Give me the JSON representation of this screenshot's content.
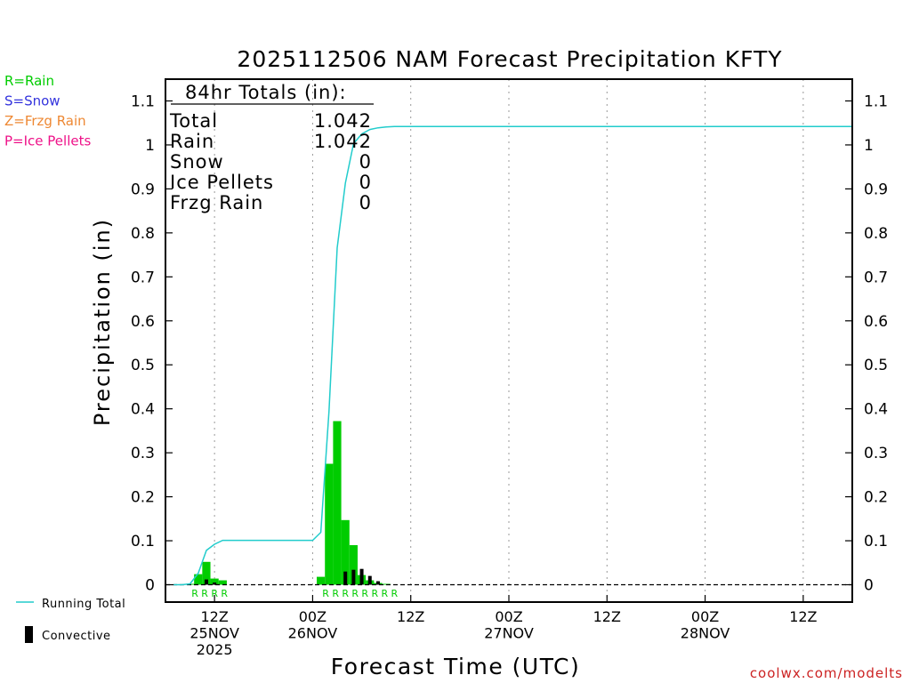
{
  "chart_data": {
    "type": "bar",
    "title": "2025112506 NAM Forecast Precipitation KFTY",
    "xlabel": "Forecast Time (UTC)",
    "ylabel": "Precipitation (in)",
    "ylim": [
      0,
      1.1
    ],
    "yticks": [
      0,
      0.1,
      0.2,
      0.3,
      0.4,
      0.5,
      0.6,
      0.7,
      0.8,
      0.9,
      1,
      1.1
    ],
    "ytick_labels": [
      "0",
      "0.1",
      "0.2",
      "0.3",
      "0.4",
      "0.5",
      "0.6",
      "0.7",
      "0.8",
      "0.9",
      "1",
      "1.1"
    ],
    "xlim_hours": [
      6,
      90
    ],
    "xticks": [
      {
        "hour": 12,
        "lines": [
          "12Z",
          "25NOV",
          "2025"
        ]
      },
      {
        "hour": 24,
        "lines": [
          "00Z",
          "26NOV"
        ]
      },
      {
        "hour": 36,
        "lines": [
          "12Z"
        ]
      },
      {
        "hour": 48,
        "lines": [
          "00Z",
          "27NOV"
        ]
      },
      {
        "hour": 60,
        "lines": [
          "12Z"
        ]
      },
      {
        "hour": 72,
        "lines": [
          "00Z",
          "28NOV"
        ]
      },
      {
        "hour": 84,
        "lines": [
          "12Z"
        ]
      }
    ],
    "bar_width_hours": 1,
    "series": [
      {
        "name": "Rain",
        "color": "#00cc00",
        "x": [
          9,
          10,
          11,
          12,
          13,
          25,
          26,
          27,
          28,
          29,
          30,
          31,
          32,
          33
        ],
        "values": [
          0.002,
          0.024,
          0.052,
          0.014,
          0.01,
          0.018,
          0.275,
          0.372,
          0.147,
          0.09,
          0.022,
          0.01,
          0.004,
          0.002
        ]
      },
      {
        "name": "Convective",
        "color": "#000000",
        "x": [
          11,
          12,
          28,
          29,
          30,
          31,
          32
        ],
        "values": [
          0.012,
          0.005,
          0.03,
          0.034,
          0.036,
          0.02,
          0.008
        ]
      },
      {
        "name": "Running Total",
        "color": "#22cccc",
        "x": [
          7,
          8,
          9,
          10,
          11,
          12,
          13,
          14,
          15,
          16,
          17,
          18,
          19,
          20,
          21,
          22,
          23,
          24,
          25,
          26,
          27,
          28,
          29,
          30,
          31,
          32,
          33,
          34,
          36,
          90
        ],
        "values": [
          0,
          0,
          0.002,
          0.026,
          0.078,
          0.092,
          0.101,
          0.101,
          0.101,
          0.101,
          0.101,
          0.101,
          0.101,
          0.101,
          0.101,
          0.101,
          0.101,
          0.101,
          0.119,
          0.394,
          0.766,
          0.913,
          1.003,
          1.025,
          1.035,
          1.039,
          1.041,
          1.042,
          1.042,
          1.042
        ]
      }
    ],
    "precip_type_markers": [
      {
        "hour": 9.6,
        "label": "R"
      },
      {
        "hour": 10.8,
        "label": "R"
      },
      {
        "hour": 12.0,
        "label": "R"
      },
      {
        "hour": 13.2,
        "label": "R"
      },
      {
        "hour": 25.6,
        "label": "R"
      },
      {
        "hour": 26.8,
        "label": "R"
      },
      {
        "hour": 28.0,
        "label": "R"
      },
      {
        "hour": 29.2,
        "label": "R"
      },
      {
        "hour": 30.4,
        "label": "R"
      },
      {
        "hour": 31.6,
        "label": "R"
      },
      {
        "hour": 32.8,
        "label": "R"
      },
      {
        "hour": 34.0,
        "label": "R"
      }
    ],
    "totals_box": {
      "heading": "84hr Totals (in):",
      "rows": [
        {
          "label": "Total",
          "value": "1.042"
        },
        {
          "label": "Rain",
          "value": "1.042"
        },
        {
          "label": "Snow",
          "value": "0"
        },
        {
          "label": "Ice Pellets",
          "value": "0"
        },
        {
          "label": "Frzg Rain",
          "value": "0"
        }
      ]
    },
    "type_legend": [
      {
        "label": "R=Rain",
        "color": "#00cc00"
      },
      {
        "label": "S=Snow",
        "color": "#3333dd"
      },
      {
        "label": "Z=Frzg Rain",
        "color": "#ee8833"
      },
      {
        "label": "P=Ice Pellets",
        "color": "#ee1188"
      }
    ],
    "legend": [
      {
        "label": "Running Total",
        "color": "#22cccc",
        "kind": "line"
      },
      {
        "label": "Convective",
        "color": "#000000",
        "kind": "bar"
      }
    ],
    "credit": "coolwx.com/modelts",
    "credit_color": "#cc2222"
  }
}
